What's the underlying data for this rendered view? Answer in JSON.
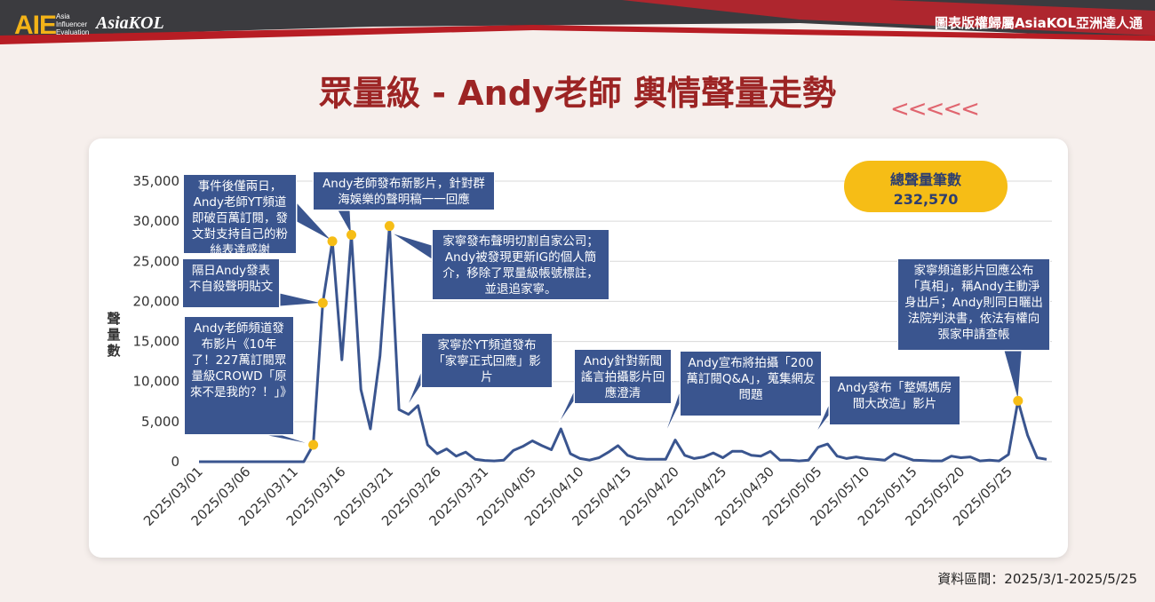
{
  "header": {
    "logo_main": "AIE",
    "logo_sub": [
      "Asia",
      "Influencer",
      "Evaluation"
    ],
    "logo_brand": "AsiaKOL",
    "copyright": "圖表版權歸屬AsiaKOL亞洲達人通"
  },
  "title": "眾量級 - Andy老師 輿情聲量走勢",
  "decor_arrows": "<<<<<",
  "total": {
    "label": "總聲量筆數",
    "value": "232,570"
  },
  "source_note": "資料區間：2025/3/1-2025/5/25",
  "colors": {
    "line": "#3a558f",
    "marker": "#f6bd16",
    "annotation_bg": "#3a558f",
    "title": "#9c2424"
  },
  "chart_data": {
    "type": "line",
    "ylabel": "聲量數",
    "xlabel": "",
    "ylim": [
      0,
      35000
    ],
    "yticks": [
      "0",
      "5,000",
      "10,000",
      "15,000",
      "20,000",
      "25,000",
      "30,000",
      "35,000"
    ],
    "ytick_values": [
      0,
      5000,
      10000,
      15000,
      20000,
      25000,
      30000,
      35000
    ],
    "xtick_labels": [
      "2025/03/01",
      "2025/03/06",
      "2025/03/11",
      "2025/03/16",
      "2025/03/21",
      "2025/03/26",
      "2025/03/31",
      "2025/04/05",
      "2025/04/10",
      "2025/04/15",
      "2025/04/20",
      "2025/04/25",
      "2025/04/30",
      "2025/05/05",
      "2025/05/10",
      "2025/05/15",
      "2025/05/20",
      "2025/05/25"
    ],
    "grid": true,
    "series": [
      {
        "values": [
          0,
          0,
          0,
          0,
          0,
          0,
          0,
          0,
          0,
          0,
          0,
          0,
          2100,
          19800,
          27500,
          12700,
          28300,
          9000,
          4100,
          13200,
          29400,
          6500,
          5900,
          7000,
          2100,
          1000,
          1600,
          700,
          1200,
          300,
          150,
          100,
          200,
          1400,
          1900,
          2600,
          2000,
          1500,
          4100,
          1000,
          400,
          200,
          500,
          1200,
          2000,
          800,
          400,
          300,
          300,
          300,
          2700,
          800,
          400,
          600,
          1100,
          500,
          1300,
          1300,
          800,
          700,
          1300,
          200,
          200,
          100,
          200,
          1800,
          2200,
          700,
          400,
          600,
          400,
          300,
          200,
          1000,
          600,
          200,
          150,
          100,
          100,
          700,
          500,
          600,
          100,
          200,
          100,
          900,
          7600,
          3300,
          500,
          300
        ],
        "highlight_points": [
          12,
          13,
          14,
          16,
          20,
          86
        ]
      }
    ],
    "annotations": [
      "Andy老師頻道發布影片《10年了！227萬訂閱眾量級CROWD「原來不是我的？！」》",
      "隔日Andy發表不自殺聲明貼文",
      "事件後僅兩日，Andy老師YT頻道即破百萬訂閱，發文對支持自己的粉絲表達感謝",
      "Andy老師發布新影片，針對群海娛樂的聲明稿一一回應",
      "家寧發布聲明切割自家公司；Andy被發現更新IG的個人簡介，移除了眾量級帳號標註，並退追家寧。",
      "家寧於YT頻道發布「家寧正式回應」影片",
      "Andy針對新聞謠言拍攝影片回應澄清",
      "Andy宣布將拍攝「200萬訂閱Q&A」，蒐集網友問題",
      "Andy發布「整媽媽房間大改造」影片",
      "家寧頻道影片回應公布「真相」，稱Andy主動淨身出戶；Andy則同日曬出法院判決書，依法有權向張家申請查帳"
    ]
  }
}
